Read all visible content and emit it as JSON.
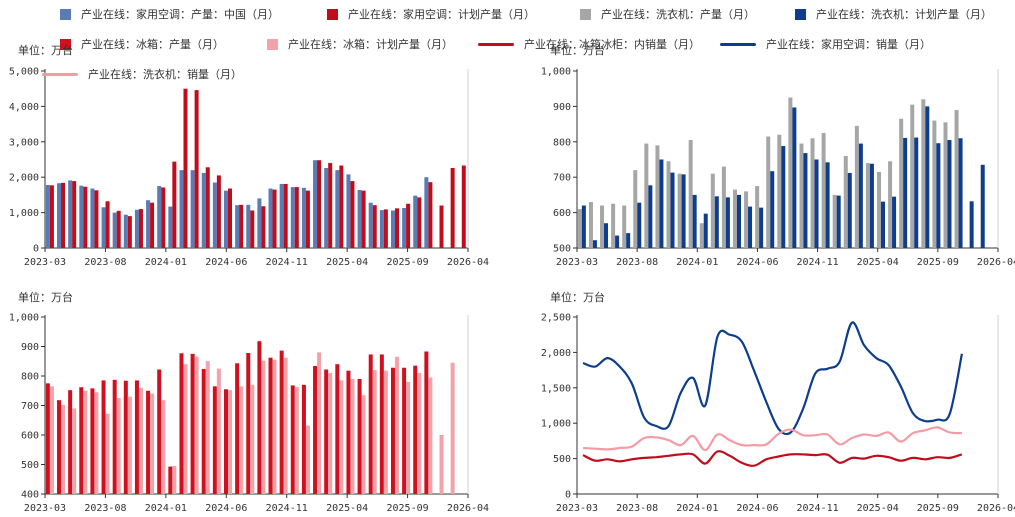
{
  "colors": {
    "ac_prod": "#5b7bb5",
    "ac_plan": "#c00d1b",
    "wm_prod": "#a6a6a6",
    "wm_plan": "#0d3d8c",
    "ref_prod": "#d0101e",
    "ref_plan": "#f2a3aa",
    "fr_domestic": "#c00d1b",
    "ac_sales": "#0d3d8c",
    "wm_sales": "#f39ca4"
  },
  "legend": [
    {
      "label": "产业在线：家用空调：产量：中国（月）",
      "kind": "rect",
      "color_key": "ac_prod"
    },
    {
      "label": "产业在线：家用空调：计划产量（月）",
      "kind": "rect",
      "color_key": "ac_plan"
    },
    {
      "label": "产业在线：洗衣机：产量（月）",
      "kind": "rect",
      "color_key": "wm_prod"
    },
    {
      "label": "产业在线：洗衣机：计划产量（月）",
      "kind": "rect",
      "color_key": "wm_plan"
    },
    {
      "label": "产业在线：冰箱：产量（月）",
      "kind": "rect",
      "color_key": "ref_prod"
    },
    {
      "label": "产业在线：冰箱：计划产量（月）",
      "kind": "rect",
      "color_key": "ref_plan"
    },
    {
      "label": "产业在线：冰箱冰柜：内销量（月）",
      "kind": "line",
      "color_key": "fr_domestic"
    },
    {
      "label": "产业在线：家用空调：销量（月）",
      "kind": "line",
      "color_key": "ac_sales"
    },
    {
      "label": "产业在线：洗衣机：销量（月）",
      "kind": "line",
      "color_key": "wm_sales"
    }
  ],
  "chart_data": [
    {
      "type": "bar",
      "unit_label": "单位：万台",
      "xticks": [
        "2023-03",
        "2023-08",
        "2024-01",
        "2024-06",
        "2024-11",
        "2025-04",
        "2025-09",
        "2026-04"
      ],
      "ylim": [
        0,
        5000
      ],
      "yticks": [
        "0",
        "1,000",
        "2,000",
        "3,000",
        "4,000",
        "5,000"
      ],
      "series": [
        {
          "name": "产业在线：家用空调：产量：中国（月）",
          "color_key": "ac_prod",
          "values": [
            1780,
            1830,
            1910,
            1760,
            1680,
            1150,
            1000,
            940,
            1080,
            1350,
            1750,
            1170,
            2200,
            2200,
            2120,
            1850,
            1620,
            1210,
            1220,
            1400,
            1680,
            1810,
            1720,
            1700,
            2480,
            2260,
            2200,
            2080,
            1640,
            1280,
            1070,
            1060,
            1130,
            1480,
            2000,
            null,
            null,
            null
          ]
        },
        {
          "name": "产业在线：家用空调：计划产量（月）",
          "color_key": "ac_plan",
          "values": [
            1770,
            1840,
            1890,
            1730,
            1630,
            1320,
            1050,
            900,
            1100,
            1280,
            1710,
            2440,
            4500,
            4460,
            2280,
            2050,
            1680,
            1220,
            1060,
            1180,
            1650,
            1810,
            1720,
            1620,
            2480,
            2400,
            2330,
            1890,
            1620,
            1210,
            1090,
            1120,
            1250,
            1430,
            1860,
            1200,
            2260,
            2330
          ]
        }
      ]
    },
    {
      "type": "bar",
      "unit_label": "单位：万台",
      "xticks": [
        "2023-03",
        "2023-08",
        "2024-01",
        "2024-06",
        "2024-11",
        "2025-04",
        "2025-09",
        "2026-04"
      ],
      "ylim": [
        500,
        1000
      ],
      "yticks": [
        "500",
        "600",
        "700",
        "800",
        "900",
        "1,000"
      ],
      "series": [
        {
          "name": "产业在线：洗衣机：产量（月）",
          "color_key": "wm_prod",
          "values": [
            610,
            630,
            620,
            625,
            620,
            720,
            795,
            790,
            745,
            710,
            805,
            570,
            710,
            730,
            665,
            660,
            675,
            815,
            820,
            925,
            795,
            810,
            825,
            650,
            760,
            845,
            740,
            715,
            745,
            865,
            905,
            920,
            860,
            855,
            890,
            null,
            null,
            null
          ]
        },
        {
          "name": "产业在线：洗衣机：计划产量（月）",
          "color_key": "wm_plan",
          "values": [
            620,
            522,
            570,
            535,
            542,
            628,
            677,
            750,
            713,
            708,
            650,
            597,
            646,
            643,
            650,
            617,
            614,
            717,
            788,
            897,
            768,
            750,
            742,
            648,
            712,
            795,
            738,
            631,
            645,
            811,
            812,
            900,
            796,
            805,
            810,
            632,
            735,
            null
          ]
        }
      ]
    },
    {
      "type": "bar",
      "unit_label": "单位：万台",
      "xticks": [
        "2023-03",
        "2023-08",
        "2024-01",
        "2024-06",
        "2024-11",
        "2025-04",
        "2025-09",
        "2026-04"
      ],
      "ylim": [
        400,
        1000
      ],
      "yticks": [
        "400",
        "500",
        "600",
        "700",
        "800",
        "900",
        "1,000"
      ],
      "series": [
        {
          "name": "产业在线：冰箱：产量（月）",
          "color_key": "ref_prod",
          "values": [
            775,
            718,
            752,
            762,
            758,
            785,
            787,
            784,
            785,
            750,
            822,
            493,
            877,
            875,
            824,
            765,
            755,
            843,
            878,
            918,
            862,
            886,
            768,
            770,
            834,
            822,
            840,
            818,
            790,
            873,
            873,
            828,
            828,
            835,
            883,
            null,
            null,
            null
          ]
        },
        {
          "name": "产业在线：冰箱：计划产量（月）",
          "color_key": "ref_plan",
          "values": [
            765,
            702,
            690,
            750,
            745,
            672,
            725,
            730,
            760,
            740,
            718,
            495,
            840,
            866,
            850,
            825,
            752,
            765,
            770,
            852,
            855,
            862,
            762,
            632,
            880,
            810,
            785,
            790,
            735,
            820,
            818,
            865,
            780,
            810,
            795,
            600,
            845,
            null
          ]
        }
      ]
    },
    {
      "type": "line",
      "unit_label": "单位：万台",
      "xticks": [
        "2023-03",
        "2023-08",
        "2024-01",
        "2024-06",
        "2024-11",
        "2025-04",
        "2025-09",
        "2026-04"
      ],
      "ylim": [
        0,
        2500
      ],
      "yticks": [
        "0",
        "500",
        "1,000",
        "1,500",
        "2,000",
        "2,500"
      ],
      "series": [
        {
          "name": "产业在线：冰箱冰柜：内销量（月）",
          "color_key": "fr_domestic",
          "values": [
            550,
            470,
            490,
            460,
            490,
            510,
            520,
            540,
            560,
            560,
            430,
            600,
            540,
            440,
            400,
            490,
            530,
            560,
            560,
            550,
            555,
            440,
            510,
            500,
            540,
            520,
            470,
            510,
            490,
            520,
            510,
            560
          ]
        },
        {
          "name": "产业在线：家用空调：销量（月）",
          "color_key": "ac_sales",
          "values": [
            1850,
            1800,
            1920,
            1800,
            1560,
            1080,
            960,
            960,
            1430,
            1640,
            1250,
            2220,
            2250,
            2150,
            1740,
            1300,
            920,
            870,
            1200,
            1700,
            1770,
            1870,
            2420,
            2100,
            1920,
            1820,
            1520,
            1140,
            1030,
            1050,
            1130,
            1980
          ]
        },
        {
          "name": "产业在线：洗衣机：销量（月）",
          "color_key": "wm_sales",
          "values": [
            650,
            640,
            630,
            650,
            670,
            790,
            800,
            760,
            690,
            820,
            620,
            840,
            760,
            690,
            690,
            700,
            850,
            910,
            830,
            830,
            840,
            700,
            790,
            840,
            820,
            870,
            740,
            860,
            900,
            940,
            870,
            860
          ]
        }
      ]
    }
  ]
}
